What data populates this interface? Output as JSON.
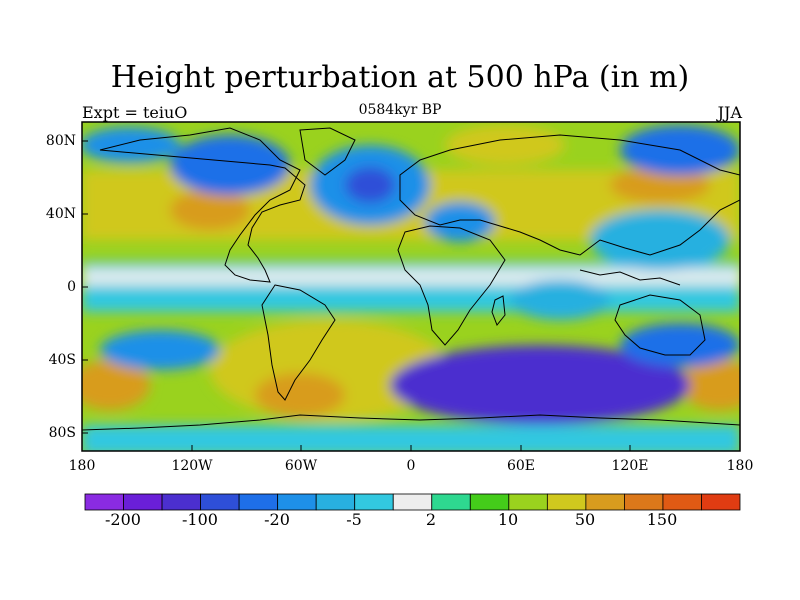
{
  "title": "Height perturbation at 500 hPa (in m)",
  "subtitle_left": "Expt = teiuO",
  "subtitle_center": "0584kyr BP",
  "subtitle_right": "JJA",
  "lat_labels": [
    "80N",
    "40N",
    "0",
    "40S",
    "80S"
  ],
  "lon_labels": [
    "180",
    "120W",
    "60W",
    "0",
    "60E",
    "120E",
    "180"
  ],
  "colorbar_labels": [
    "-200",
    "-100",
    "-20",
    "-5",
    "2",
    "10",
    "50",
    "150"
  ],
  "colors": {
    "levels": [
      "#8a2be2",
      "#6a1fd8",
      "#4b2fcf",
      "#2e4fd8",
      "#1e6fe8",
      "#1e90e8",
      "#28b0e0",
      "#32c8e0",
      "#eeeeee",
      "#2ed890",
      "#44cc1a",
      "#9ad21e",
      "#d0c81e",
      "#d89c1e",
      "#dc781a",
      "#e05a14",
      "#e03c12"
    ],
    "land_outline": "#000000",
    "background": "#ffffff"
  },
  "chart_data": {
    "type": "heatmap",
    "variable": "Height perturbation at 500 hPa",
    "units": "m",
    "lon_range": [
      -180,
      180
    ],
    "lat_range": [
      -90,
      90
    ],
    "colorbar_ticks": [
      -200,
      -100,
      -20,
      -5,
      2,
      10,
      50,
      150
    ]
  }
}
